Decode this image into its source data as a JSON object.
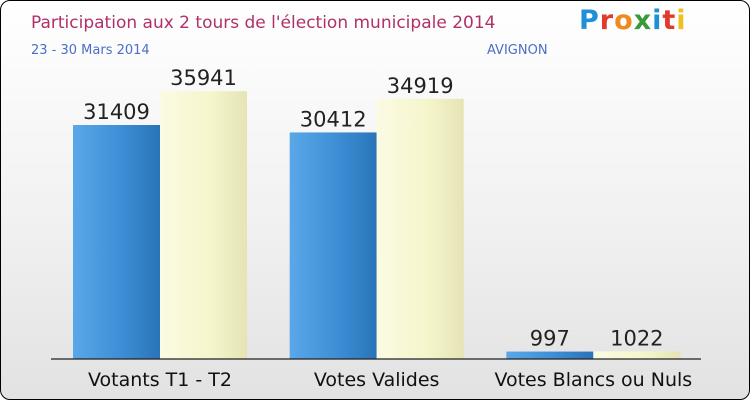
{
  "header": {
    "title": "Participation aux 2 tours de l'élection municipale 2014",
    "subtitle": "23 - 30 Mars 2014",
    "place": "AVIGNON"
  },
  "logo": {
    "text": "Proxiti",
    "letter_colors": [
      "#1f8fd6",
      "#e03a2a",
      "#f08a1c",
      "#3a9a3a",
      "#1f8fd6",
      "#e03a2a",
      "#f0c020"
    ]
  },
  "colors": {
    "title": "#b0306a",
    "subtitle": "#4a6fc6",
    "series_t1": "#3d8ed6",
    "series_t2": "#f5f5cc"
  },
  "chart_data": {
    "type": "bar",
    "title": "Participation aux 2 tours de l'élection municipale 2014",
    "categories": [
      "Votants T1 - T2",
      "Votes Valides",
      "Votes Blancs ou Nuls"
    ],
    "series": [
      {
        "values": [
          31409,
          30412,
          997
        ]
      },
      {
        "values": [
          35941,
          34919,
          1022
        ]
      }
    ],
    "ylim": [
      0,
      40000
    ],
    "grid": false,
    "legend": "none"
  }
}
